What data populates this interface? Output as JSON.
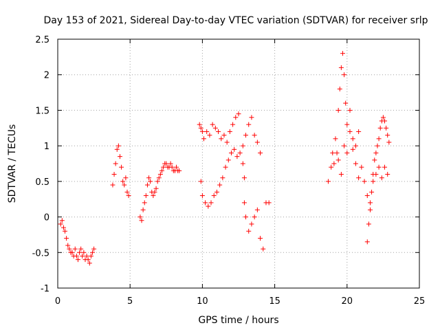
{
  "chart_data": {
    "type": "scatter",
    "title": "Day 153 of 2021, Sidereal Day-to-day VTEC variation (SDTVAR) for receiver srlp",
    "xlabel": "GPS time / hours",
    "ylabel": "SDTVAR / TECUs",
    "xlim": [
      0,
      25
    ],
    "ylim": [
      -1,
      2.5
    ],
    "xticks": [
      0,
      5,
      10,
      15,
      20,
      25
    ],
    "xtick_labels": [
      "0",
      "5",
      "10",
      "15",
      "20",
      "25"
    ],
    "yticks": [
      -1,
      -0.5,
      0,
      0.5,
      1,
      1.5,
      2,
      2.5
    ],
    "ytick_labels": [
      "-1",
      "-0.5",
      "0",
      "0.5",
      "1",
      "1.5",
      "2",
      "2.5"
    ],
    "grid": true,
    "marker": "plus",
    "color": "#ff0000",
    "series": [
      {
        "name": "SDTVAR",
        "x": [
          0.2,
          0.3,
          0.4,
          0.5,
          0.6,
          0.7,
          0.8,
          0.9,
          1.0,
          1.1,
          1.2,
          1.3,
          1.4,
          1.5,
          1.6,
          1.7,
          1.8,
          1.9,
          2.0,
          2.1,
          2.2,
          2.3,
          2.4,
          2.5,
          3.8,
          3.9,
          4.0,
          4.1,
          4.2,
          4.3,
          4.4,
          4.5,
          4.6,
          4.7,
          4.8,
          4.9,
          5.7,
          5.8,
          5.9,
          6.0,
          6.1,
          6.2,
          6.3,
          6.4,
          6.5,
          6.6,
          6.7,
          6.8,
          6.9,
          7.0,
          7.1,
          7.2,
          7.3,
          7.4,
          7.5,
          7.6,
          7.7,
          7.8,
          7.9,
          8.0,
          8.1,
          8.2,
          8.3,
          8.4,
          9.8,
          9.9,
          10.0,
          10.1,
          10.3,
          10.5,
          10.7,
          10.9,
          11.1,
          11.3,
          11.5,
          11.7,
          11.9,
          12.1,
          12.3,
          12.5,
          9.9,
          10.0,
          10.2,
          10.4,
          10.6,
          10.8,
          11.0,
          11.2,
          11.4,
          11.6,
          11.8,
          12.0,
          12.2,
          12.4,
          12.6,
          12.8,
          12.9,
          12.9,
          13.0,
          13.2,
          13.4,
          13.6,
          13.8,
          14.0,
          14.2,
          14.4,
          14.6,
          12.8,
          13.0,
          13.2,
          13.4,
          13.6,
          13.8,
          14.0,
          18.7,
          18.9,
          19.1,
          19.3,
          19.4,
          19.5,
          19.6,
          19.7,
          19.8,
          19.9,
          20.0,
          20.2,
          20.4,
          20.6,
          20.8,
          19.0,
          19.2,
          19.4,
          19.6,
          19.8,
          20.0,
          20.2,
          20.4,
          20.6,
          20.8,
          21.0,
          21.2,
          21.4,
          21.6,
          21.8,
          22.0,
          22.2,
          22.4,
          22.6,
          22.8,
          21.4,
          21.5,
          21.6,
          21.7,
          21.8,
          21.9,
          22.0,
          22.1,
          22.2,
          22.3,
          22.4,
          22.5,
          22.6,
          22.7,
          22.8,
          22.9
        ],
        "y": [
          -0.1,
          -0.05,
          -0.15,
          -0.2,
          -0.3,
          -0.4,
          -0.45,
          -0.5,
          -0.5,
          -0.55,
          -0.45,
          -0.55,
          -0.6,
          -0.5,
          -0.45,
          -0.55,
          -0.5,
          -0.6,
          -0.55,
          -0.6,
          -0.65,
          -0.55,
          -0.5,
          -0.45,
          0.45,
          0.6,
          0.75,
          0.95,
          1.0,
          0.85,
          0.7,
          0.5,
          0.45,
          0.55,
          0.35,
          0.3,
          0.0,
          -0.05,
          0.1,
          0.2,
          0.3,
          0.45,
          0.55,
          0.5,
          0.35,
          0.3,
          0.35,
          0.4,
          0.5,
          0.55,
          0.6,
          0.65,
          0.7,
          0.75,
          0.75,
          0.7,
          0.7,
          0.75,
          0.7,
          0.65,
          0.65,
          0.7,
          0.65,
          0.65,
          1.3,
          1.25,
          1.2,
          1.1,
          1.2,
          1.15,
          1.3,
          1.25,
          1.2,
          1.1,
          1.15,
          1.05,
          1.2,
          1.3,
          1.4,
          1.45,
          0.5,
          0.3,
          0.2,
          0.15,
          0.2,
          0.3,
          0.35,
          0.45,
          0.55,
          0.7,
          0.8,
          0.9,
          0.95,
          0.85,
          0.9,
          0.75,
          0.55,
          0.2,
          0.0,
          -0.2,
          -0.1,
          0.0,
          0.1,
          -0.3,
          -0.45,
          0.2,
          0.2,
          1.0,
          1.15,
          1.3,
          1.4,
          1.15,
          1.05,
          0.9,
          0.5,
          0.7,
          0.75,
          0.9,
          1.5,
          1.8,
          2.1,
          2.3,
          2.0,
          1.6,
          1.3,
          1.5,
          1.1,
          1.0,
          1.2,
          0.9,
          1.1,
          0.8,
          0.6,
          1.0,
          0.9,
          1.2,
          0.95,
          0.75,
          0.55,
          0.7,
          0.5,
          0.3,
          0.2,
          0.5,
          0.6,
          0.7,
          0.55,
          0.7,
          0.6,
          -0.35,
          -0.1,
          0.1,
          0.35,
          0.6,
          0.8,
          0.9,
          1.0,
          1.1,
          1.25,
          1.35,
          1.4,
          1.35,
          1.25,
          1.15,
          1.05
        ]
      }
    ]
  }
}
